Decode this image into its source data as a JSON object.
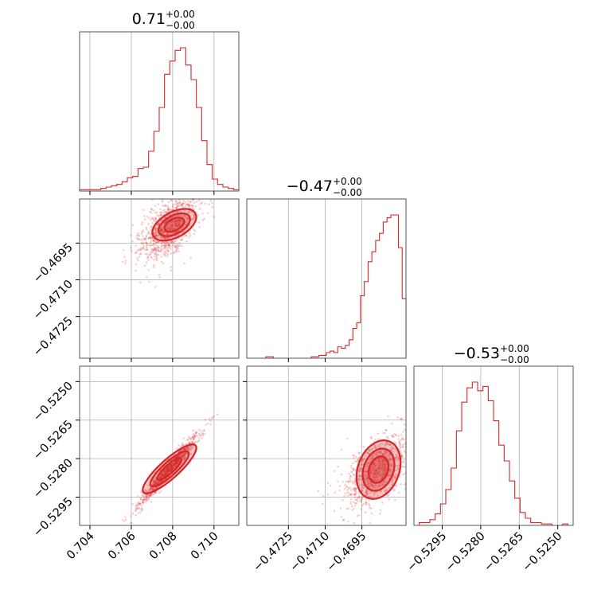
{
  "chart_data": {
    "type": "corner",
    "color": "#d62728",
    "parameters": [
      {
        "title_value": "0.71",
        "title_plus": "+0.00",
        "title_minus": "−0.00",
        "range": [
          0.7035,
          0.7112
        ],
        "ticks": [
          0.704,
          0.706,
          0.708,
          0.71
        ],
        "tick_labels": [
          "0.704",
          "0.706",
          "0.708",
          "0.710"
        ],
        "hist_counts": [
          1,
          1,
          1,
          1,
          2,
          3,
          4,
          5,
          7,
          10,
          11,
          17,
          18,
          30,
          45,
          63,
          88,
          98,
          106,
          108,
          95,
          84,
          63,
          38,
          20,
          9,
          5,
          3,
          2,
          1
        ]
      },
      {
        "title_value": "−0.47",
        "title_plus": "+0.00",
        "title_minus": "−0.00",
        "range": [
          -0.4742,
          -0.4677
        ],
        "ticks": [
          -0.4725,
          -0.471,
          -0.4695
        ],
        "tick_labels": [
          "−0.4725",
          "−0.4710",
          "−0.4695"
        ],
        "hist_counts": [
          0,
          0,
          0,
          0,
          0,
          1,
          1,
          0,
          0,
          0,
          0,
          0,
          0,
          0,
          0,
          0,
          0,
          1,
          1,
          2,
          2,
          4,
          5,
          4,
          8,
          7,
          9,
          13,
          21,
          25,
          44,
          54,
          68,
          75,
          83,
          88,
          96,
          99,
          101,
          101,
          78,
          42
        ]
      },
      {
        "title_value": "−0.53",
        "title_plus": "+0.00",
        "title_minus": "−0.00",
        "range": [
          -0.5306,
          -0.5244
        ],
        "ticks": [
          -0.5295,
          -0.528,
          -0.5265,
          -0.525
        ],
        "tick_labels": [
          "−0.5295",
          "−0.5280",
          "−0.5265",
          "−0.5250"
        ],
        "hist_counts": [
          0,
          2,
          2,
          4,
          8,
          15,
          25,
          40,
          66,
          86,
          96,
          100,
          94,
          97,
          87,
          73,
          56,
          45,
          31,
          19,
          9,
          5,
          2,
          2,
          1,
          1,
          0,
          0,
          1,
          0
        ]
      }
    ],
    "grid": true
  }
}
